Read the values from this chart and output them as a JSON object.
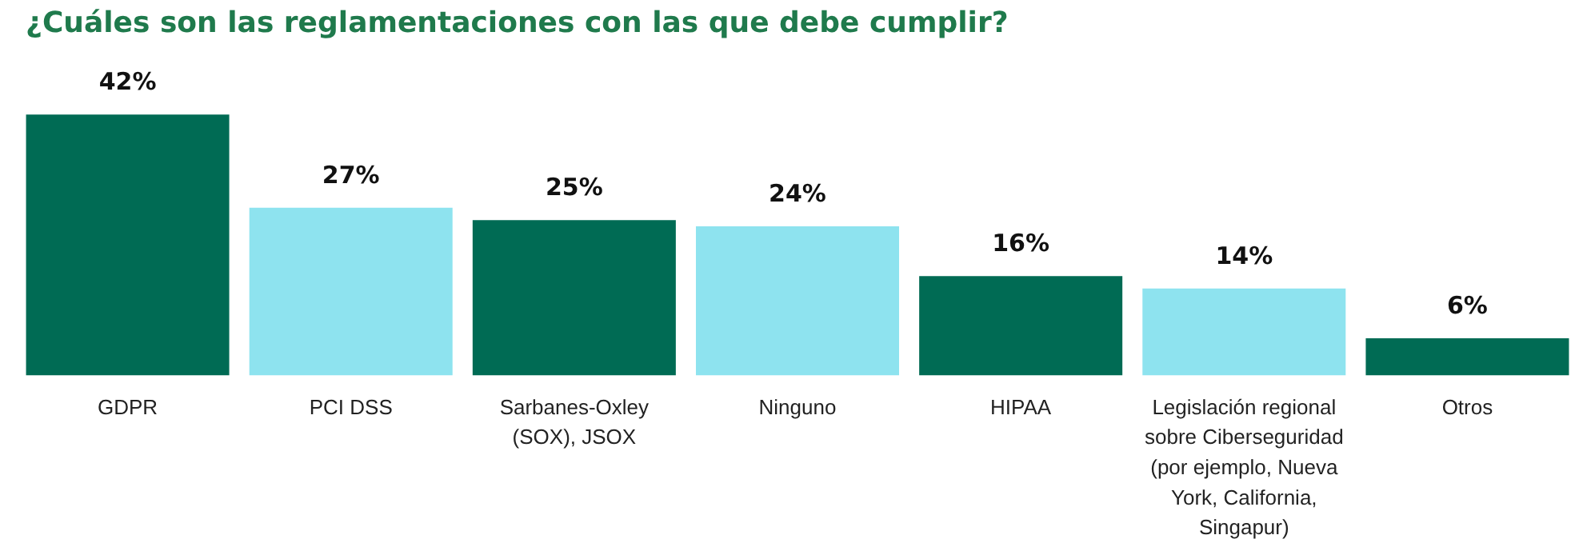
{
  "chart_data": {
    "type": "bar",
    "title": "¿Cuáles son las reglamentaciones con las que debe cumplir?",
    "categories": [
      "GDPR",
      "PCI DSS",
      "Sarbanes-Oxley (SOX), JSOX",
      "Ninguno",
      "HIPAA",
      "Legislación regional sobre Ciberseguridad (por ejemplo, Nueva York, California, Singapur)",
      "Otros"
    ],
    "values": [
      42,
      27,
      25,
      24,
      16,
      14,
      6
    ],
    "value_labels": [
      "42%",
      "27%",
      "25%",
      "24%",
      "16%",
      "14%",
      "6%"
    ],
    "colors": [
      "#006b54",
      "#8ee3ef",
      "#006b54",
      "#8ee3ef",
      "#006b54",
      "#8ee3ef",
      "#006b54"
    ],
    "grid": false,
    "legend": false
  }
}
